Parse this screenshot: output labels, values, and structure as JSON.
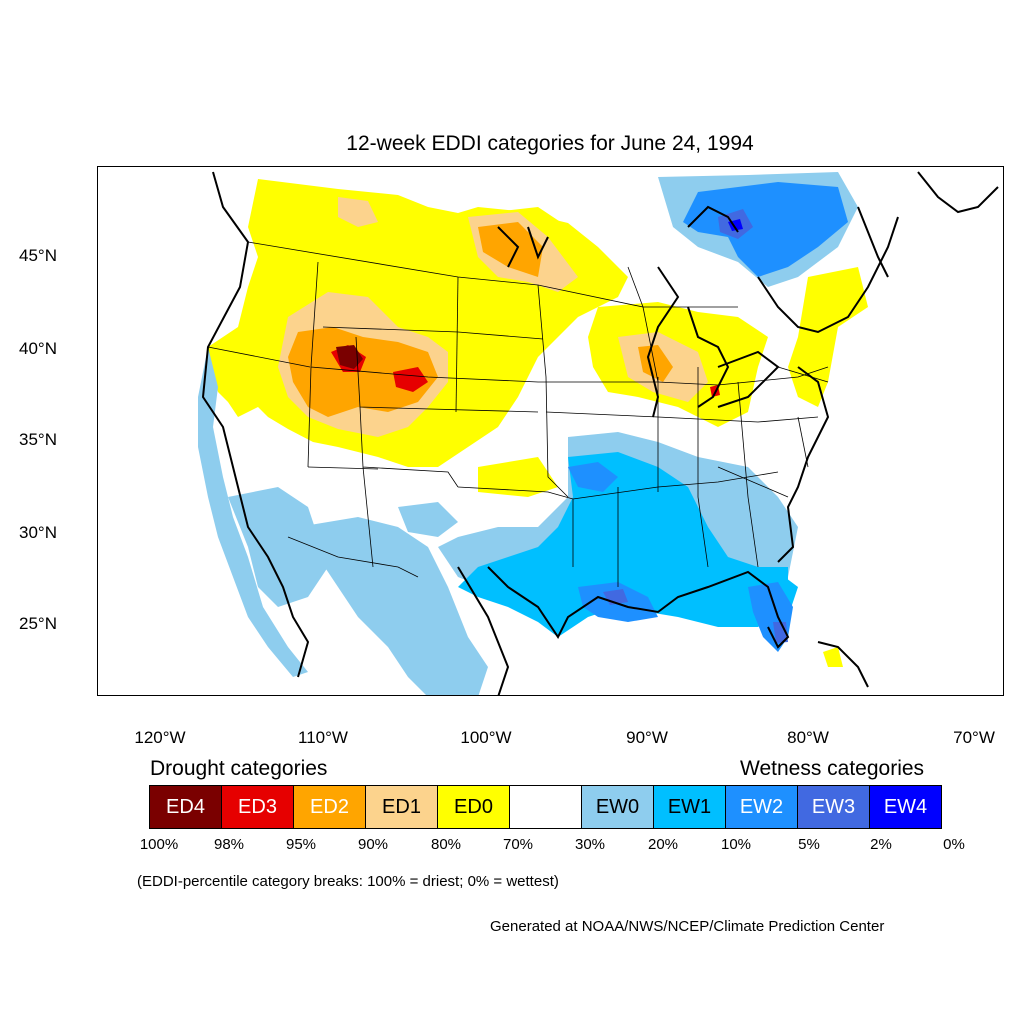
{
  "title": "12-week EDDI categories for June 24, 1994",
  "lat_labels": [
    "45°N",
    "40°N",
    "35°N",
    "30°N",
    "25°N"
  ],
  "lon_labels": [
    "120°W",
    "110°W",
    "100°W",
    "90°W",
    "80°W",
    "70°W"
  ],
  "drought_heading": "Drought categories",
  "wetness_heading": "Wetness categories",
  "legend": [
    {
      "label": "ED4",
      "color": "#7a0000",
      "text_color": "#ffffff"
    },
    {
      "label": "ED3",
      "color": "#e60000",
      "text_color": "#ffffff"
    },
    {
      "label": "ED2",
      "color": "#ffa500",
      "text_color": "#ffffff"
    },
    {
      "label": "ED1",
      "color": "#fcd38d",
      "text_color": "#000000"
    },
    {
      "label": "ED0",
      "color": "#ffff00",
      "text_color": "#000000"
    },
    {
      "label": "",
      "color": "#ffffff",
      "text_color": "#000000"
    },
    {
      "label": "EW0",
      "color": "#8ecdee",
      "text_color": "#000000"
    },
    {
      "label": "EW1",
      "color": "#00bfff",
      "text_color": "#000000"
    },
    {
      "label": "EW2",
      "color": "#1e90ff",
      "text_color": "#ffffff"
    },
    {
      "label": "EW3",
      "color": "#4169e1",
      "text_color": "#ffffff"
    },
    {
      "label": "EW4",
      "color": "#0000ff",
      "text_color": "#ffffff"
    }
  ],
  "percent_labels": [
    "100%",
    "98%",
    "95%",
    "90%",
    "80%",
    "70%",
    "30%",
    "20%",
    "10%",
    "5%",
    "2%",
    "0%"
  ],
  "note": "(EDDI-percentile category breaks: 100% = driest; 0% = wettest)",
  "credit": "Generated at NOAA/NWS/NCEP/Climate Prediction Center"
}
